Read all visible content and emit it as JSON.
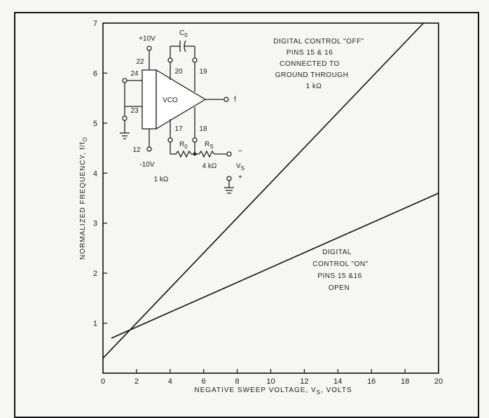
{
  "chart_data": {
    "type": "line",
    "xlabel": "NEGATIVE SWEEP VOLTAGE, V",
    "xlabel_sub": "S",
    "xlabel_unit": ", VOLTS",
    "ylabel": "NORMALIZED FREQUENCY, f/f",
    "ylabel_sub": "O",
    "xlim": [
      0,
      20
    ],
    "ylim": [
      0,
      7
    ],
    "xticks": [
      "0",
      "2",
      "4",
      "6",
      "8",
      "10",
      "12",
      "14",
      "16",
      "18",
      "20"
    ],
    "yticks": [
      "1",
      "2",
      "3",
      "4",
      "5",
      "6",
      "7"
    ],
    "series": [
      {
        "x": [
          0,
          19.1
        ],
        "y": [
          0.3,
          7.0
        ]
      },
      {
        "x": [
          0.5,
          20
        ],
        "y": [
          0.7,
          3.6
        ]
      }
    ],
    "annotations": [
      {
        "lines": [
          "DIGITAL CONTROL \"OFF\"",
          "PINS 15 & 16",
          "CONNECTED TO",
          "GROUND THROUGH",
          "1 kΩ"
        ]
      },
      {
        "lines": [
          "DIGITAL",
          "CONTROL \"ON\"",
          "PINS 15 &16",
          "OPEN"
        ]
      }
    ]
  },
  "circuit": {
    "vco_label": "VCO",
    "plus_supply": "+10V",
    "minus_supply": "-10V",
    "cap_label": "C",
    "cap_sub": "0",
    "r0_label": "R",
    "r0_sub": "0",
    "rs_label": "R",
    "rs_sub": "S",
    "rs_value": "4 kΩ",
    "r_ground_value": "1 kΩ",
    "output_label": "f",
    "vs_label": "V",
    "vs_sub": "S",
    "minus_sign": "–",
    "plus_sign": "+",
    "pins": {
      "p22": "22",
      "p24": "24",
      "p23": "23",
      "p12": "12",
      "p20": "20",
      "p19": "19",
      "p17": "17",
      "p18": "18"
    }
  }
}
